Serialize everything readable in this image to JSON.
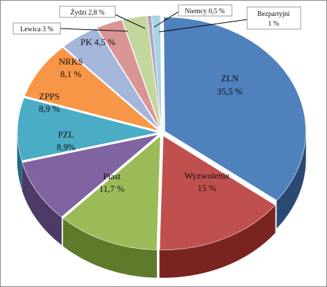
{
  "chart_data": {
    "type": "pie",
    "style": "3d-exploded",
    "title": "",
    "legend": "none",
    "slices": [
      {
        "name": "ZLN",
        "value": 35.5,
        "label": "35,5 %",
        "color": "#4F81BD",
        "side": "#2A4A74"
      },
      {
        "name": "Wyzwolenie",
        "value": 15,
        "label": "15 %",
        "color": "#C0504D",
        "side": "#7A2422"
      },
      {
        "name": "Piast",
        "value": 11.7,
        "label": "11,7 %",
        "color": "#9BBB59",
        "side": "#5E7A2A"
      },
      {
        "name": "PZL",
        "value": 8.9,
        "label": "8,9%",
        "color": "#8064A2",
        "side": "#4D3A66"
      },
      {
        "name": "ZPPS",
        "value": 8.9,
        "label": "8,9 %",
        "color": "#4BACC6",
        "side": "#236A7E"
      },
      {
        "name": "NRKS",
        "value": 8.1,
        "label": "8,1 %",
        "color": "#F79646",
        "side": "#A8561A"
      },
      {
        "name": "PK",
        "value": 4.5,
        "label": "PK 4,5 %",
        "color": "#A5B6DB",
        "side": "#6E7DA0"
      },
      {
        "name": "Lewica",
        "value": 3,
        "label": "Lewica 3 %",
        "color": "#D99594",
        "side": "#9A5958"
      },
      {
        "name": "Żydzi",
        "value": 2.8,
        "label": "Żydzi 2,8 %",
        "color": "#C3D69B",
        "side": "#869A5E"
      },
      {
        "name": "Niemcy",
        "value": 0.5,
        "label": "Niemcy 0,5 %",
        "color": "#B3A2C7",
        "side": "#77678C"
      },
      {
        "name": "Bezpartyjni",
        "value": 1,
        "label": "1 %",
        "color": "#A9D3E0",
        "side": "#6E98A6"
      }
    ]
  }
}
